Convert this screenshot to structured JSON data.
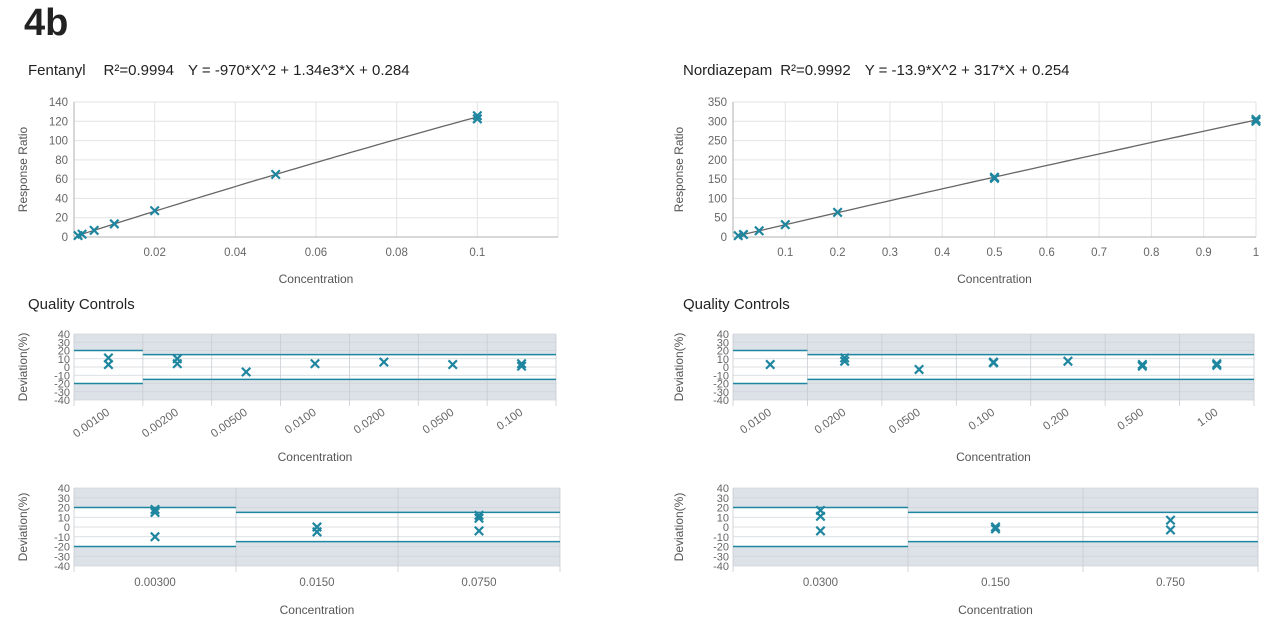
{
  "figure_label": "4b",
  "panels": [
    {
      "id": "fentanyl",
      "title_parts": [
        "Fentanyl",
        "R²=0.9994",
        "Y = -970*X^2 + 1.34e3*X + 0.284"
      ],
      "qc_title": "Quality Controls",
      "calibration": {
        "type": "scatter",
        "xlabel": "Concentration",
        "ylabel": "Response Ratio",
        "xlim": [
          0,
          0.12
        ],
        "ylim": [
          0,
          140
        ],
        "x_ticks": [
          "0.02",
          "0.04",
          "0.06",
          "0.08",
          "0.1"
        ],
        "x_tick_values": [
          0.02,
          0.04,
          0.06,
          0.08,
          0.1
        ],
        "y_ticks": [
          0,
          20,
          40,
          60,
          80,
          100,
          120,
          140
        ],
        "curve": {
          "a": -970,
          "b": 1340,
          "c": 0.284,
          "x_range": [
            0.001,
            0.1
          ]
        },
        "points": [
          [
            0.001,
            1.5
          ],
          [
            0.002,
            2.9
          ],
          [
            0.005,
            6.9
          ],
          [
            0.01,
            13.6
          ],
          [
            0.02,
            27.3
          ],
          [
            0.05,
            64.9
          ],
          [
            0.1,
            122.5
          ],
          [
            0.1,
            125.8
          ]
        ]
      },
      "qc_top": {
        "xlabel": "Concentration",
        "ylabel": "Deviation(%)",
        "ylim": [
          -40,
          40
        ],
        "y_ticks": [
          40,
          30,
          20,
          10,
          0,
          -10,
          -20,
          -30,
          -40
        ],
        "categories": [
          "0.00100",
          "0.00200",
          "0.00500",
          "0.0100",
          "0.0200",
          "0.0500",
          "0.100"
        ],
        "limits": [
          [
            20,
            -20
          ],
          [
            15,
            -15
          ],
          [
            15,
            -15
          ],
          [
            15,
            -15
          ],
          [
            15,
            -15
          ],
          [
            15,
            -15
          ],
          [
            15,
            -15
          ]
        ],
        "points": [
          [
            0,
            11
          ],
          [
            0,
            3
          ],
          [
            1,
            10
          ],
          [
            1,
            4
          ],
          [
            2,
            -6
          ],
          [
            3,
            4
          ],
          [
            4,
            6
          ],
          [
            5,
            3
          ],
          [
            6,
            4
          ],
          [
            6,
            1
          ]
        ]
      },
      "qc_bottom": {
        "xlabel": "Concentration",
        "ylabel": "Deviation(%)",
        "ylim": [
          -40,
          40
        ],
        "y_ticks": [
          40,
          30,
          20,
          10,
          0,
          -10,
          -20,
          -30,
          -40
        ],
        "categories": [
          "0.00300",
          "0.0150",
          "0.0750"
        ],
        "limits": [
          [
            20,
            -20
          ],
          [
            15,
            -15
          ],
          [
            15,
            -15
          ]
        ],
        "points": [
          [
            0,
            18
          ],
          [
            0,
            15
          ],
          [
            0,
            -10
          ],
          [
            1,
            0
          ],
          [
            1,
            -5
          ],
          [
            2,
            12
          ],
          [
            2,
            9
          ],
          [
            2,
            -4
          ]
        ]
      }
    },
    {
      "id": "nordiazepam",
      "title_parts": [
        "Nordiazepam",
        "R²=0.9992",
        "Y = -13.9*X^2 + 317*X + 0.254"
      ],
      "qc_title": "Quality Controls",
      "calibration": {
        "type": "scatter",
        "xlabel": "Concentration",
        "ylabel": "Response Ratio",
        "xlim": [
          0,
          1
        ],
        "ylim": [
          0,
          350
        ],
        "x_ticks": [
          "0.1",
          "0.2",
          "0.3",
          "0.4",
          "0.5",
          "0.6",
          "0.7",
          "0.8",
          "0.9",
          "1"
        ],
        "x_tick_values": [
          0.1,
          0.2,
          0.3,
          0.4,
          0.5,
          0.6,
          0.7,
          0.8,
          0.9,
          1.0
        ],
        "y_ticks": [
          0,
          50,
          100,
          150,
          200,
          250,
          300,
          350
        ],
        "curve": {
          "a": -13.9,
          "b": 317,
          "c": 0.254,
          "x_range": [
            0.01,
            1.0
          ]
        },
        "points": [
          [
            0.01,
            3.4
          ],
          [
            0.02,
            6.5
          ],
          [
            0.05,
            16.1
          ],
          [
            0.1,
            32.0
          ],
          [
            0.2,
            63.8
          ],
          [
            0.5,
            155.0
          ],
          [
            0.5,
            152.0
          ],
          [
            1.0,
            305.0
          ],
          [
            1.0,
            300.0
          ]
        ]
      },
      "qc_top": {
        "xlabel": "Concentration",
        "ylabel": "Deviation(%)",
        "ylim": [
          -40,
          40
        ],
        "y_ticks": [
          40,
          30,
          20,
          10,
          0,
          -10,
          -20,
          -30,
          -40
        ],
        "categories": [
          "0.0100",
          "0.0200",
          "0.0500",
          "0.100",
          "0.200",
          "0.500",
          "1.00"
        ],
        "limits": [
          [
            20,
            -20
          ],
          [
            15,
            -15
          ],
          [
            15,
            -15
          ],
          [
            15,
            -15
          ],
          [
            15,
            -15
          ],
          [
            15,
            -15
          ],
          [
            15,
            -15
          ]
        ],
        "points": [
          [
            0,
            3
          ],
          [
            1,
            11
          ],
          [
            1,
            7
          ],
          [
            2,
            -3
          ],
          [
            3,
            6
          ],
          [
            3,
            5
          ],
          [
            4,
            7
          ],
          [
            5,
            3
          ],
          [
            5,
            1
          ],
          [
            6,
            4
          ],
          [
            6,
            2
          ]
        ]
      },
      "qc_bottom": {
        "xlabel": "Concentration",
        "ylabel": "Deviation(%)",
        "ylim": [
          -40,
          40
        ],
        "y_ticks": [
          40,
          30,
          20,
          10,
          0,
          -10,
          -20,
          -30,
          -40
        ],
        "categories": [
          "0.0300",
          "0.150",
          "0.750"
        ],
        "limits": [
          [
            20,
            -20
          ],
          [
            15,
            -15
          ],
          [
            15,
            -15
          ]
        ],
        "points": [
          [
            0,
            17
          ],
          [
            0,
            11
          ],
          [
            0,
            -4
          ],
          [
            1,
            0
          ],
          [
            1,
            -2
          ],
          [
            2,
            7
          ],
          [
            2,
            -3
          ]
        ]
      }
    }
  ],
  "chart_data": [
    {
      "type": "scatter",
      "title": "Fentanyl R²=0.9994 Y = -970*X^2 + 1.34e3*X + 0.284",
      "xlabel": "Concentration",
      "ylabel": "Response Ratio",
      "xlim": [
        0,
        0.12
      ],
      "ylim": [
        0,
        140
      ],
      "x": [
        0.001,
        0.002,
        0.005,
        0.01,
        0.02,
        0.05,
        0.1,
        0.1
      ],
      "y": [
        1.5,
        2.9,
        6.9,
        13.6,
        27.3,
        64.9,
        122.5,
        125.8
      ]
    },
    {
      "type": "scatter",
      "title": "Quality Controls",
      "xlabel": "Concentration",
      "ylabel": "Deviation(%)",
      "ylim": [
        -40,
        40
      ],
      "categories": [
        "0.00100",
        "0.00200",
        "0.00500",
        "0.0100",
        "0.0200",
        "0.0500",
        "0.100"
      ]
    },
    {
      "type": "scatter",
      "xlabel": "Concentration",
      "ylabel": "Deviation(%)",
      "ylim": [
        -40,
        40
      ],
      "categories": [
        "0.00300",
        "0.0150",
        "0.0750"
      ]
    },
    {
      "type": "scatter",
      "title": "Nordiazepam R²=0.9992 Y = -13.9*X^2 + 317*X + 0.254",
      "xlabel": "Concentration",
      "ylabel": "Response Ratio",
      "xlim": [
        0,
        1
      ],
      "ylim": [
        0,
        350
      ],
      "x": [
        0.01,
        0.02,
        0.05,
        0.1,
        0.2,
        0.5,
        0.5,
        1.0,
        1.0
      ],
      "y": [
        3.4,
        6.5,
        16.1,
        32.0,
        63.8,
        155.0,
        152.0,
        305.0,
        300.0
      ]
    },
    {
      "type": "scatter",
      "title": "Quality Controls",
      "xlabel": "Concentration",
      "ylabel": "Deviation(%)",
      "ylim": [
        -40,
        40
      ],
      "categories": [
        "0.0100",
        "0.0200",
        "0.0500",
        "0.100",
        "0.200",
        "0.500",
        "1.00"
      ]
    },
    {
      "type": "scatter",
      "xlabel": "Concentration",
      "ylabel": "Deviation(%)",
      "ylim": [
        -40,
        40
      ],
      "categories": [
        "0.0300",
        "0.150",
        "0.750"
      ]
    }
  ]
}
